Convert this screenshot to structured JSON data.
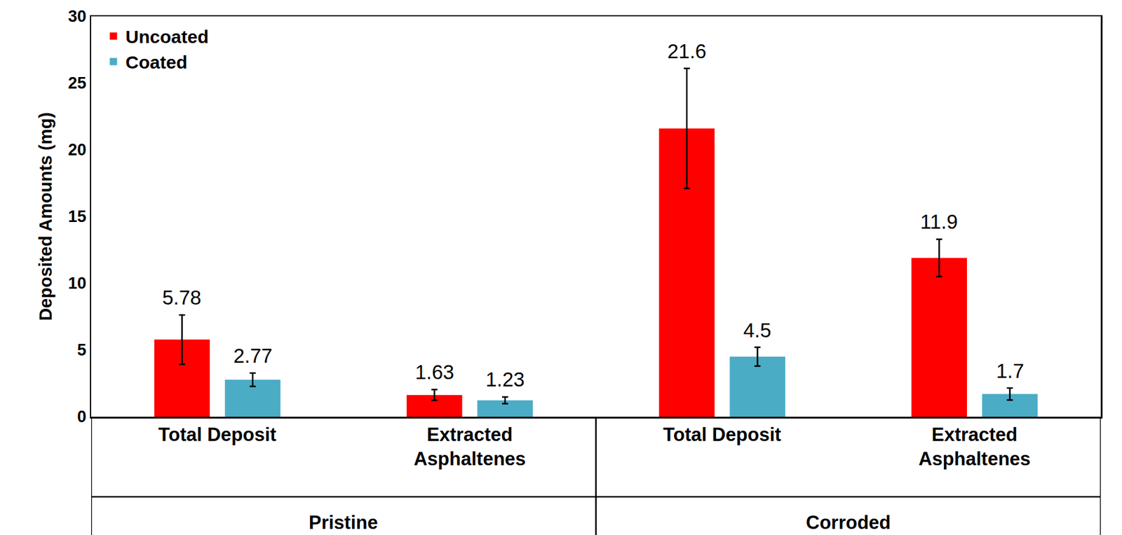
{
  "chart_data": {
    "type": "bar",
    "y_label": "Deposited Amounts (mg)",
    "categories": [
      "Total Deposit",
      "Extracted Asphaltenes",
      "Total Deposit",
      "Extracted Asphaltenes"
    ],
    "category_groups": [
      "Pristine",
      "Pristine",
      "Corroded",
      "Corroded"
    ],
    "series": [
      {
        "name": "Uncoated",
        "color": "#ff0000",
        "values": [
          5.78,
          1.63,
          21.6,
          11.9
        ],
        "errors": [
          1.85,
          0.4,
          4.5,
          1.4
        ]
      },
      {
        "name": "Coated",
        "color": "#4bacc6",
        "values": [
          2.77,
          1.23,
          4.5,
          1.7
        ],
        "errors": [
          0.5,
          0.25,
          0.7,
          0.45
        ]
      }
    ],
    "ylim": [
      0,
      30
    ],
    "yticks": [
      0,
      5,
      10,
      15,
      20,
      25,
      30
    ],
    "grid": false,
    "legend": "upper left",
    "data_labels": true
  }
}
